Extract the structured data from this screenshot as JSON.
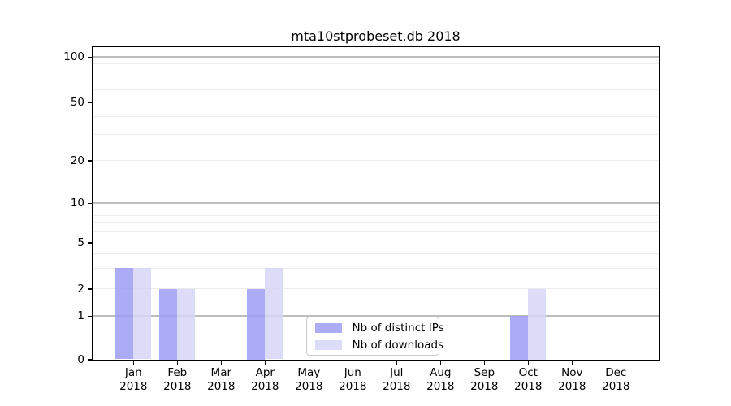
{
  "chart_data": {
    "type": "bar",
    "title": "mta10stprobeset.db 2018",
    "categories": [
      "Jan",
      "Feb",
      "Mar",
      "Apr",
      "May",
      "Jun",
      "Jul",
      "Aug",
      "Sep",
      "Oct",
      "Nov",
      "Dec"
    ],
    "year_label": "2018",
    "series": [
      {
        "name": "Nb of distinct IPs",
        "color": "#9c9cf4",
        "values": [
          3,
          2,
          0,
          2,
          0,
          0,
          0,
          0,
          0,
          1,
          0,
          0
        ]
      },
      {
        "name": "Nb of downloads",
        "color": "#d6d6f8",
        "values": [
          3,
          2,
          0,
          3,
          0,
          0,
          0,
          0,
          0,
          2,
          0,
          0
        ]
      }
    ],
    "y_axis": {
      "scale": "symlog",
      "tick_values": [
        0,
        1,
        2,
        5,
        10,
        20,
        50,
        100
      ],
      "tick_labels": [
        "0",
        "1",
        "2",
        "5",
        "10",
        "20",
        "50",
        "100"
      ]
    },
    "gridlines": {
      "major_values": [
        1,
        10,
        100
      ],
      "minor_values": [
        2,
        3,
        4,
        6,
        7,
        8,
        9,
        20,
        30,
        40,
        60,
        70,
        80,
        90
      ],
      "major_color": "#bdbdbd",
      "minor_color": "#ececec"
    },
    "legend": {
      "position": "lower center"
    },
    "colors": {
      "background": "#ffffff",
      "frame": "#000000"
    }
  }
}
